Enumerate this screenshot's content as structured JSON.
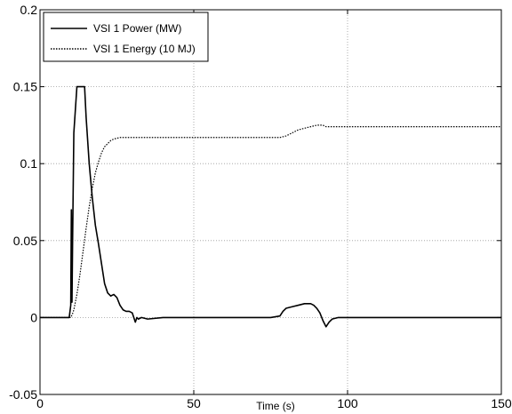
{
  "chart_data": {
    "type": "line",
    "xlabel": "Time (s)",
    "ylabel": "",
    "xlim": [
      0,
      150
    ],
    "ylim": [
      -0.05,
      0.2
    ],
    "xticks": [
      0,
      50,
      100,
      150
    ],
    "yticks": [
      -0.05,
      0,
      0.05,
      0.1,
      0.15,
      0.2
    ],
    "xtick_labels": [
      "0",
      "50",
      "100",
      "150"
    ],
    "ytick_labels": [
      "-0.05",
      "0",
      "0.05",
      "0.1",
      "0.15",
      "0.2"
    ],
    "grid": true,
    "legend_position": "top-left",
    "series": [
      {
        "name": "VSI 1 Power (MW)",
        "style": "solid",
        "color": "#000000",
        "x": [
          0,
          9.5,
          10,
          10.2,
          10.4,
          10.6,
          11,
          12,
          12.5,
          13.5,
          14.5,
          15,
          16,
          17,
          18,
          19,
          20,
          21,
          22,
          23,
          24,
          25,
          26,
          27,
          28,
          29,
          30,
          30.5,
          31,
          31.5,
          32,
          33,
          35,
          40,
          50,
          60,
          70,
          75,
          78,
          79,
          80,
          82,
          84,
          86,
          88,
          89,
          90,
          91,
          92,
          93,
          94,
          95,
          97,
          100,
          110,
          120,
          130,
          140,
          150
        ],
        "y": [
          0,
          0,
          0.008,
          0.07,
          0.01,
          0.05,
          0.12,
          0.15,
          0.15,
          0.15,
          0.15,
          0.13,
          0.1,
          0.078,
          0.06,
          0.048,
          0.035,
          0.022,
          0.016,
          0.014,
          0.015,
          0.013,
          0.008,
          0.005,
          0.004,
          0.004,
          0.003,
          0.0,
          -0.003,
          0.0,
          -0.001,
          0.0,
          -0.001,
          0.0,
          0.0,
          0.0,
          0.0,
          0.0,
          0.001,
          0.004,
          0.006,
          0.007,
          0.008,
          0.009,
          0.009,
          0.008,
          0.006,
          0.003,
          -0.002,
          -0.006,
          -0.003,
          -0.001,
          0.0,
          0.0,
          0.0,
          0.0,
          0.0,
          0.0,
          0.0
        ]
      },
      {
        "name": "VSI 1 Energy (10 MJ)",
        "style": "dotted",
        "color": "#000000",
        "x": [
          0,
          10,
          10.5,
          11,
          12,
          13,
          14,
          15,
          16,
          17,
          18,
          19,
          20,
          21,
          22,
          23,
          24,
          25,
          26,
          27,
          28,
          29,
          30,
          35,
          50,
          70,
          78,
          80,
          82,
          84,
          86,
          88,
          90,
          91,
          92,
          93,
          95,
          100,
          110,
          120,
          130,
          140,
          150
        ],
        "y": [
          0,
          0,
          0.002,
          0.005,
          0.015,
          0.028,
          0.043,
          0.058,
          0.072,
          0.084,
          0.094,
          0.101,
          0.107,
          0.111,
          0.113,
          0.115,
          0.116,
          0.1165,
          0.117,
          0.117,
          0.117,
          0.117,
          0.117,
          0.117,
          0.117,
          0.117,
          0.117,
          0.118,
          0.12,
          0.122,
          0.123,
          0.124,
          0.125,
          0.125,
          0.125,
          0.124,
          0.124,
          0.124,
          0.124,
          0.124,
          0.124,
          0.124,
          0.124
        ]
      }
    ]
  }
}
